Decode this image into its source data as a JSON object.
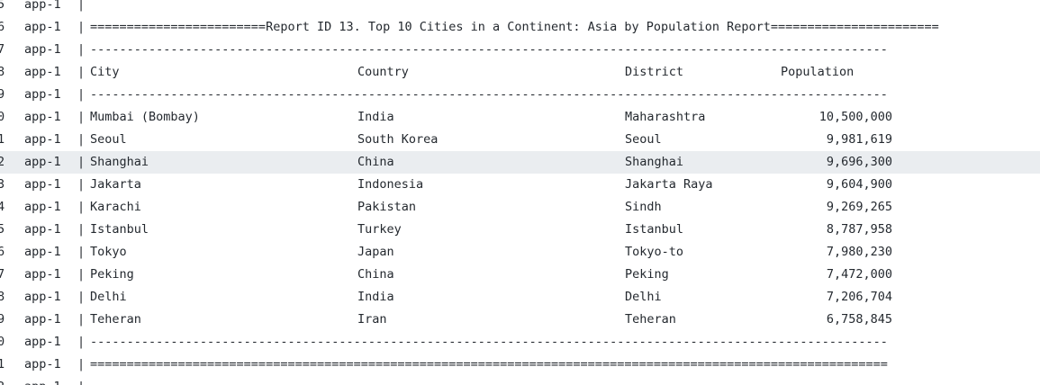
{
  "service": "app-1",
  "separator": "|",
  "lines": [
    {
      "ln": "5",
      "type": "text",
      "text": ""
    },
    {
      "ln": "6",
      "type": "text",
      "text": "========================Report ID 13. Top 10 Cities in a Continent: Asia by Population Report======================="
    },
    {
      "ln": "7",
      "type": "text",
      "text": "-------------------------------------------------------------------------------------------------------------"
    },
    {
      "ln": "8",
      "type": "row",
      "cells": [
        "City",
        "Country",
        "District",
        "Population"
      ],
      "header": true
    },
    {
      "ln": "9",
      "type": "text",
      "text": "-------------------------------------------------------------------------------------------------------------"
    },
    {
      "ln": "0",
      "type": "row",
      "cells": [
        "Mumbai (Bombay)",
        "India",
        "Maharashtra",
        "10,500,000"
      ]
    },
    {
      "ln": "1",
      "type": "row",
      "cells": [
        "Seoul",
        "South Korea",
        "Seoul",
        "9,981,619"
      ]
    },
    {
      "ln": "2",
      "type": "row",
      "cells": [
        "Shanghai",
        "China",
        "Shanghai",
        "9,696,300"
      ],
      "highlighted": true
    },
    {
      "ln": "3",
      "type": "row",
      "cells": [
        "Jakarta",
        "Indonesia",
        "Jakarta Raya",
        "9,604,900"
      ]
    },
    {
      "ln": "4",
      "type": "row",
      "cells": [
        "Karachi",
        "Pakistan",
        "Sindh",
        "9,269,265"
      ]
    },
    {
      "ln": "5",
      "type": "row",
      "cells": [
        "Istanbul",
        "Turkey",
        "Istanbul",
        "8,787,958"
      ]
    },
    {
      "ln": "6",
      "type": "row",
      "cells": [
        "Tokyo",
        "Japan",
        "Tokyo-to",
        "7,980,230"
      ]
    },
    {
      "ln": "7",
      "type": "row",
      "cells": [
        "Peking",
        "China",
        "Peking",
        "7,472,000"
      ]
    },
    {
      "ln": "8",
      "type": "row",
      "cells": [
        "Delhi",
        "India",
        "Delhi",
        "7,206,704"
      ]
    },
    {
      "ln": "9",
      "type": "row",
      "cells": [
        "Teheran",
        "Iran",
        "Teheran",
        "6,758,845"
      ]
    },
    {
      "ln": "0",
      "type": "text",
      "text": "-------------------------------------------------------------------------------------------------------------"
    },
    {
      "ln": "1",
      "type": "text",
      "text": "============================================================================================================="
    },
    {
      "ln": "2",
      "type": "text",
      "text": ""
    }
  ]
}
